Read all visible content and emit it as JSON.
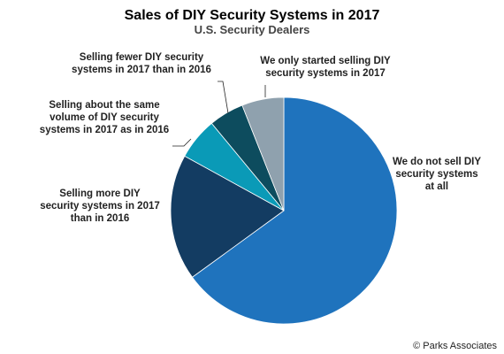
{
  "chart_data": {
    "type": "pie",
    "title": "Sales of DIY Security Systems in 2017",
    "subtitle": "U.S. Security Dealers",
    "source": "© Parks Associates",
    "slices": [
      {
        "label": "We do not sell DIY security systems at all",
        "value": 65,
        "color": "#1f73bd"
      },
      {
        "label": "Selling more DIY security systems in 2017 than in 2016",
        "value": 18,
        "color": "#133c62"
      },
      {
        "label": "Selling about the same volume of DIY security systems in 2017 as in 2016",
        "value": 6,
        "color": "#0a9ab7"
      },
      {
        "label": "Selling fewer DIY security systems in 2017 than in 2016",
        "value": 5,
        "color": "#0d4c5e"
      },
      {
        "label": "We only started selling DIY security systems in 2017",
        "value": 6,
        "color": "#8fa1ae"
      }
    ],
    "label_lines": [
      [
        "We do not sell DIY",
        "security systems",
        "at all"
      ],
      [
        "Selling more DIY",
        "security systems in 2017",
        "than in 2016"
      ],
      [
        "Selling about the same",
        "volume of DIY security",
        "systems in 2017 as in 2016"
      ],
      [
        "Selling fewer DIY security",
        "systems in 2017 than in 2016"
      ],
      [
        "We only started selling DIY",
        "security systems in 2017"
      ]
    ]
  }
}
